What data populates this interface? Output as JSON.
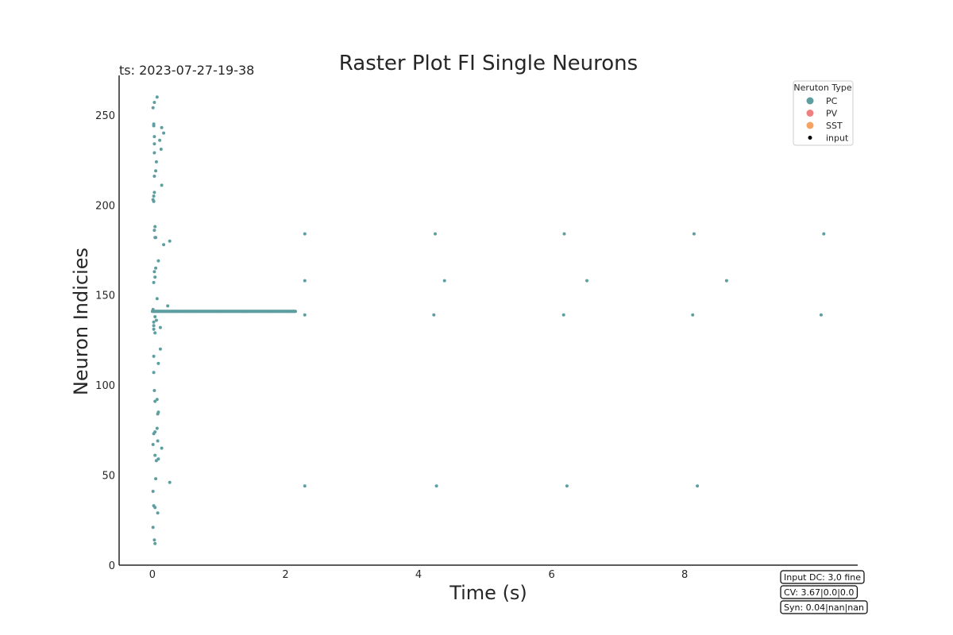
{
  "colors": {
    "pc": "#5f9ea0",
    "pv": "#f08080",
    "sst": "#f4a460",
    "input": "#000000",
    "axis": "#262626"
  },
  "chart_data": {
    "type": "scatter",
    "title": "Raster Plot FI Single Neurons",
    "timestamp": "ts: 2023-07-27-19-38",
    "xlabel": "Time (s)",
    "ylabel": "Neuron Indicies",
    "xlim": [
      -0.5,
      10.6
    ],
    "ylim": [
      0,
      272
    ],
    "xticks": [
      0,
      2,
      4,
      6,
      8
    ],
    "yticks": [
      0,
      50,
      100,
      150,
      200,
      250
    ],
    "grid": false,
    "legend": {
      "title": "Neruton Type",
      "position": "top-right",
      "entries": [
        {
          "label": "PC",
          "color": "#5f9ea0",
          "marker": "large"
        },
        {
          "label": "PV",
          "color": "#f08080",
          "marker": "large"
        },
        {
          "label": "SST",
          "color": "#f4a460",
          "marker": "large"
        },
        {
          "label": "input",
          "color": "#000000",
          "marker": "small"
        }
      ]
    },
    "series": [
      {
        "name": "PC",
        "color": "#5f9ea0",
        "points": [
          [
            0.07,
            260
          ],
          [
            0.03,
            257
          ],
          [
            0.01,
            254
          ],
          [
            0.02,
            245
          ],
          [
            0.02,
            244
          ],
          [
            0.14,
            243
          ],
          [
            0.17,
            240
          ],
          [
            0.03,
            238
          ],
          [
            0.11,
            236
          ],
          [
            0.03,
            234
          ],
          [
            0.13,
            231
          ],
          [
            0.03,
            229
          ],
          [
            0.06,
            224
          ],
          [
            0.05,
            219
          ],
          [
            0.03,
            216
          ],
          [
            0.14,
            211
          ],
          [
            0.03,
            207
          ],
          [
            0.02,
            205
          ],
          [
            0.01,
            203
          ],
          [
            0.02,
            202
          ],
          [
            0.04,
            188
          ],
          [
            0.03,
            186
          ],
          [
            0.05,
            182
          ],
          [
            0.04,
            182
          ],
          [
            0.26,
            180
          ],
          [
            0.17,
            178
          ],
          [
            0.09,
            169
          ],
          [
            0.05,
            165
          ],
          [
            0.03,
            163
          ],
          [
            0.04,
            160
          ],
          [
            0.02,
            157
          ],
          [
            0.07,
            148
          ],
          [
            0.23,
            144
          ],
          [
            0.01,
            142
          ],
          [
            0.04,
            138
          ],
          [
            0.06,
            136
          ],
          [
            0.02,
            135
          ],
          [
            0.02,
            133
          ],
          [
            0.12,
            132
          ],
          [
            0.02,
            131
          ],
          [
            0.04,
            129
          ],
          [
            0.12,
            120
          ],
          [
            0.02,
            116
          ],
          [
            0.09,
            112
          ],
          [
            0.02,
            107
          ],
          [
            0.03,
            97
          ],
          [
            0.07,
            92
          ],
          [
            0.04,
            91
          ],
          [
            0.09,
            85
          ],
          [
            0.08,
            84
          ],
          [
            0.07,
            76
          ],
          [
            0.04,
            74
          ],
          [
            0.02,
            73
          ],
          [
            0.08,
            69
          ],
          [
            0.01,
            67
          ],
          [
            0.14,
            65
          ],
          [
            0.04,
            61
          ],
          [
            0.09,
            59
          ],
          [
            0.06,
            58
          ],
          [
            0.05,
            48
          ],
          [
            0.26,
            46
          ],
          [
            0.01,
            41
          ],
          [
            0.02,
            33
          ],
          [
            0.04,
            32
          ],
          [
            0.08,
            29
          ],
          [
            0.01,
            21
          ],
          [
            0.03,
            14
          ],
          [
            0.04,
            12
          ],
          [
            2.29,
            184
          ],
          [
            4.25,
            184
          ],
          [
            6.19,
            184
          ],
          [
            8.14,
            184
          ],
          [
            10.09,
            184
          ],
          [
            2.29,
            158
          ],
          [
            4.39,
            158
          ],
          [
            6.53,
            158
          ],
          [
            8.63,
            158
          ],
          [
            2.29,
            139
          ],
          [
            4.23,
            139
          ],
          [
            6.18,
            139
          ],
          [
            8.12,
            139
          ],
          [
            10.05,
            139
          ],
          [
            2.29,
            44
          ],
          [
            4.27,
            44
          ],
          [
            6.23,
            44
          ],
          [
            8.19,
            44
          ]
        ],
        "bursts": [
          {
            "y": 141,
            "x_start": 0.0,
            "x_end": 2.15,
            "interval": 0.01
          }
        ]
      }
    ]
  },
  "info_boxes": [
    {
      "text": "Input DC: 3,0 fine"
    },
    {
      "text": "CV: 3.67|0.0|0.0"
    },
    {
      "text": "Syn: 0.04|nan|nan"
    }
  ]
}
